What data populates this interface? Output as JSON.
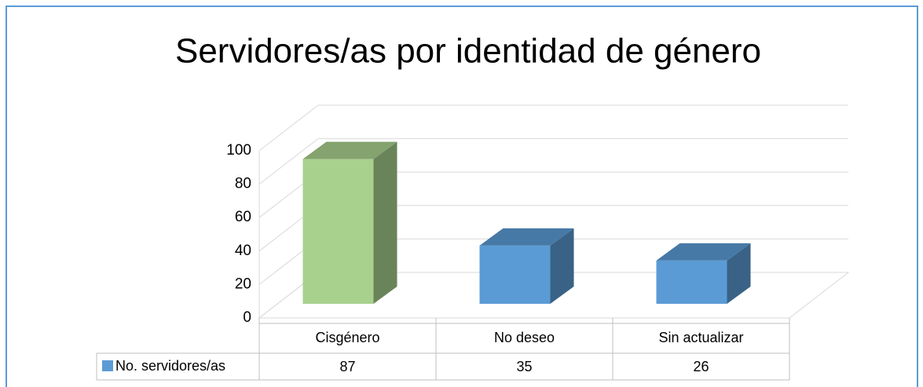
{
  "chart_data": {
    "type": "bar3d",
    "title": "Servidores/as por identidad de género",
    "categories": [
      "Cisgénero",
      "No deseo",
      "Sin actualizar"
    ],
    "series": [
      {
        "name": "No. servidores/as",
        "color": "#5b9bd5",
        "colors": [
          "#a9d18e",
          "#5b9bd5",
          "#5b9bd5"
        ],
        "values": [
          87,
          35,
          26
        ]
      }
    ],
    "ylim": [
      0,
      100
    ],
    "yticks": [
      0,
      20,
      40,
      60,
      80,
      100
    ],
    "grid": true,
    "data_table": true
  }
}
